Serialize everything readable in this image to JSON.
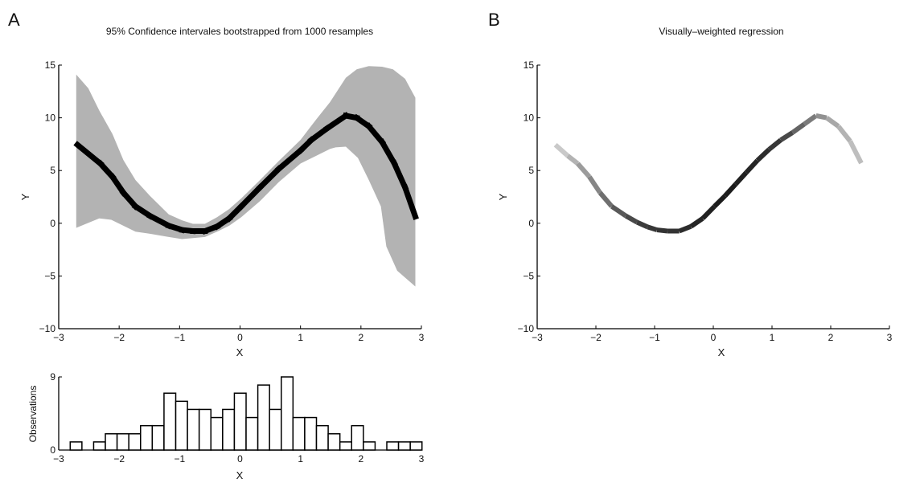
{
  "chart_data": [
    {
      "panel_label": "A",
      "type": "area",
      "title": "95% Confidence intervales bootstrapped from 1000 resamples",
      "xlabel": "X",
      "ylabel": "Y",
      "xlim": [
        -3,
        3
      ],
      "ylim": [
        -10,
        15
      ],
      "xticks": [
        "-3",
        "-2",
        "-1",
        "0",
        "1",
        "2",
        "3"
      ],
      "yticks": [
        "-10",
        "-5",
        "0",
        "5",
        "10",
        "15"
      ],
      "grid": false,
      "band_color": "#b3b3b3",
      "line_color": "#000000",
      "regression_line": [
        [
          -2.69,
          7.44
        ],
        [
          -2.31,
          5.66
        ],
        [
          -2.11,
          4.4
        ],
        [
          -1.93,
          2.9
        ],
        [
          -1.73,
          1.6
        ],
        [
          -1.49,
          0.7
        ],
        [
          -1.18,
          -0.23
        ],
        [
          -0.96,
          -0.63
        ],
        [
          -0.78,
          -0.74
        ],
        [
          -0.58,
          -0.74
        ],
        [
          -0.38,
          -0.3
        ],
        [
          -0.18,
          0.46
        ],
        [
          0.02,
          1.6
        ],
        [
          0.33,
          3.4
        ],
        [
          0.64,
          5.15
        ],
        [
          1.0,
          6.9
        ],
        [
          1.18,
          7.9
        ],
        [
          1.44,
          9.0
        ],
        [
          1.75,
          10.2
        ],
        [
          1.93,
          10.0
        ],
        [
          2.13,
          9.2
        ],
        [
          2.35,
          7.7
        ],
        [
          2.55,
          5.7
        ],
        [
          2.73,
          3.4
        ],
        [
          2.9,
          0.63
        ]
      ],
      "ci_upper": [
        [
          -2.71,
          14.1
        ],
        [
          -2.51,
          12.8
        ],
        [
          -2.33,
          10.7
        ],
        [
          -2.11,
          8.45
        ],
        [
          -1.93,
          6.0
        ],
        [
          -1.73,
          4.1
        ],
        [
          -1.49,
          2.6
        ],
        [
          -1.18,
          0.84
        ],
        [
          -0.96,
          0.28
        ],
        [
          -0.78,
          -0.05
        ],
        [
          -0.58,
          -0.05
        ],
        [
          -0.38,
          0.58
        ],
        [
          -0.18,
          1.35
        ],
        [
          0.02,
          2.36
        ],
        [
          0.33,
          4.1
        ],
        [
          0.64,
          5.9
        ],
        [
          1.0,
          7.9
        ],
        [
          1.26,
          9.85
        ],
        [
          1.49,
          11.5
        ],
        [
          1.75,
          13.8
        ],
        [
          1.93,
          14.6
        ],
        [
          2.13,
          14.9
        ],
        [
          2.35,
          14.85
        ],
        [
          2.53,
          14.6
        ],
        [
          2.73,
          13.7
        ],
        [
          2.9,
          11.9
        ]
      ],
      "ci_lower": [
        [
          -2.71,
          -0.43
        ],
        [
          -2.33,
          0.46
        ],
        [
          -2.13,
          0.33
        ],
        [
          -1.73,
          -0.8
        ],
        [
          -1.49,
          -1.0
        ],
        [
          -1.18,
          -1.3
        ],
        [
          -0.96,
          -1.5
        ],
        [
          -0.58,
          -1.3
        ],
        [
          -0.38,
          -0.8
        ],
        [
          -0.18,
          -0.23
        ],
        [
          0.02,
          0.58
        ],
        [
          0.33,
          2.1
        ],
        [
          0.64,
          3.9
        ],
        [
          1.0,
          5.66
        ],
        [
          1.26,
          6.4
        ],
        [
          1.49,
          7.05
        ],
        [
          1.58,
          7.2
        ],
        [
          1.75,
          7.26
        ],
        [
          1.95,
          6.2
        ],
        [
          2.13,
          4.1
        ],
        [
          2.33,
          1.6
        ],
        [
          2.42,
          -2.2
        ],
        [
          2.6,
          -4.5
        ],
        [
          2.9,
          -6.0
        ]
      ]
    },
    {
      "type": "bar",
      "xlabel": "X",
      "ylabel": "Observations",
      "xlim": [
        -3,
        3
      ],
      "ylim": [
        0,
        9
      ],
      "xticks": [
        "-3",
        "-2",
        "-1",
        "0",
        "1",
        "2",
        "3"
      ],
      "yticks": [
        "0",
        "9"
      ],
      "bin_start": -2.81,
      "bin_width": 0.194,
      "counts": [
        1,
        0,
        1,
        2,
        2,
        2,
        3,
        3,
        7,
        6,
        5,
        5,
        4,
        5,
        7,
        4,
        8,
        5,
        9,
        4,
        4,
        3,
        2,
        1,
        3,
        1,
        0,
        1,
        1,
        1
      ]
    },
    {
      "panel_label": "B",
      "type": "line",
      "title": "Visually–weighted regression",
      "xlabel": "X",
      "ylabel": "Y",
      "xlim": [
        -3,
        3
      ],
      "ylim": [
        -10,
        15
      ],
      "xticks": [
        "-3",
        "-2",
        "-1",
        "0",
        "1",
        "2",
        "3"
      ],
      "yticks": [
        "-10",
        "-5",
        "0",
        "5",
        "10",
        "15"
      ],
      "grid": false,
      "points": [
        [
          -2.69,
          7.44
        ],
        [
          -2.48,
          6.4
        ],
        [
          -2.31,
          5.66
        ],
        [
          -2.11,
          4.4
        ],
        [
          -1.93,
          2.9
        ],
        [
          -1.73,
          1.6
        ],
        [
          -1.49,
          0.7
        ],
        [
          -1.3,
          0.1
        ],
        [
          -1.12,
          -0.35
        ],
        [
          -0.96,
          -0.63
        ],
        [
          -0.78,
          -0.74
        ],
        [
          -0.58,
          -0.74
        ],
        [
          -0.38,
          -0.3
        ],
        [
          -0.18,
          0.46
        ],
        [
          0.02,
          1.6
        ],
        [
          0.2,
          2.6
        ],
        [
          0.38,
          3.7
        ],
        [
          0.56,
          4.8
        ],
        [
          0.75,
          5.95
        ],
        [
          0.95,
          7.0
        ],
        [
          1.15,
          7.9
        ],
        [
          1.35,
          8.6
        ],
        [
          1.55,
          9.4
        ],
        [
          1.75,
          10.2
        ],
        [
          1.93,
          10.0
        ],
        [
          2.13,
          9.2
        ],
        [
          2.33,
          7.8
        ],
        [
          2.52,
          5.7
        ]
      ],
      "segment_weights": [
        0.15,
        0.25,
        0.35,
        0.45,
        0.55,
        0.65,
        0.72,
        0.78,
        0.8,
        0.82,
        0.82,
        0.85,
        0.88,
        0.9,
        0.92,
        0.92,
        0.9,
        0.88,
        0.85,
        0.8,
        0.72,
        0.6,
        0.5,
        0.4,
        0.3,
        0.25,
        0.2
      ]
    }
  ]
}
